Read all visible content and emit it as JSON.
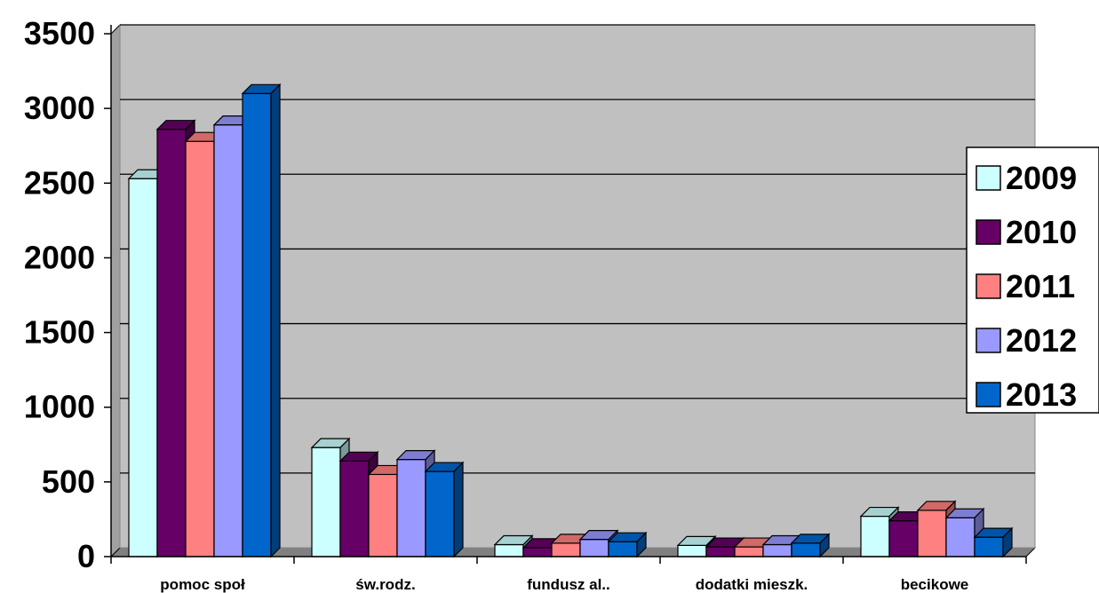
{
  "chart_data": {
    "type": "bar",
    "title": "",
    "xlabel": "",
    "ylabel": "",
    "categories": [
      "pomoc społ",
      "św.rodz.",
      "fundusz al..",
      "dodatki mieszk.",
      "becikowe"
    ],
    "series": [
      {
        "name": "2009",
        "color": "#CCFFFF",
        "values": [
          2530,
          730,
          80,
          75,
          270
        ]
      },
      {
        "name": "2010",
        "color": "#660066",
        "values": [
          2860,
          640,
          60,
          65,
          240
        ]
      },
      {
        "name": "2011",
        "color": "#FF8080",
        "values": [
          2780,
          550,
          90,
          65,
          310
        ]
      },
      {
        "name": "2012",
        "color": "#9999FF",
        "values": [
          2890,
          650,
          115,
          80,
          260
        ]
      },
      {
        "name": "2013",
        "color": "#0066CC",
        "values": [
          3100,
          570,
          100,
          90,
          130
        ]
      }
    ],
    "ylim": [
      0,
      3500
    ],
    "yticks": [
      0,
      500,
      1000,
      1500,
      2000,
      2500,
      3000,
      3500
    ],
    "grid": true,
    "legend": "right",
    "colors": {
      "wall": "#C0C0C0",
      "floor": "#808080",
      "grid": "#000000"
    }
  }
}
